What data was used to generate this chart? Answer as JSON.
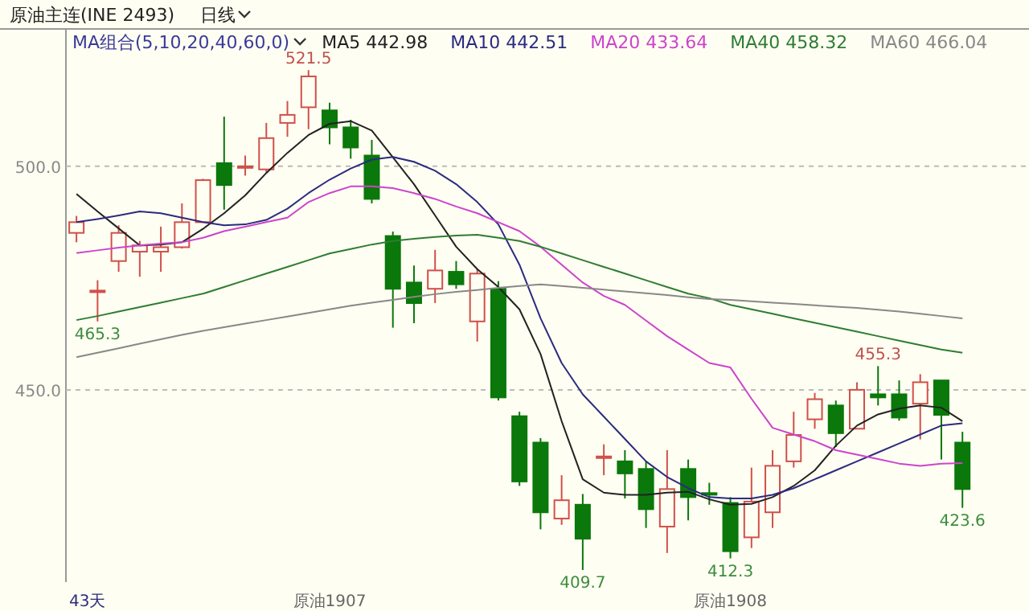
{
  "chart_data": {
    "type": "candlestick",
    "title": "原油主连(INE 2493)",
    "subtitle": "日线",
    "legend_title": "MA组合(5,10,20,40,60,0)",
    "legend": "top",
    "grid": "y",
    "categories": [
      null,
      null,
      null,
      null,
      null,
      null,
      null,
      null,
      null,
      null,
      null,
      null,
      "原油1907",
      null,
      null,
      null,
      null,
      null,
      null,
      null,
      null,
      null,
      null,
      null,
      null,
      null,
      null,
      null,
      null,
      null,
      null,
      "原油1908",
      null,
      null,
      null,
      null,
      null,
      null,
      null,
      null,
      null,
      null,
      null
    ],
    "ylim": [
      407,
      530
    ],
    "yticks": [
      {
        "value": 500,
        "label": "500.0"
      },
      {
        "value": 450,
        "label": "450.0"
      }
    ],
    "ohlc": [
      [
        485.1,
        488.9,
        483.0,
        487.5
      ],
      [
        472.2,
        474.5,
        465.3,
        472.2
      ],
      [
        478.8,
        486.8,
        476.4,
        485.1
      ],
      [
        480.9,
        483.3,
        475.3,
        482.3
      ],
      [
        480.9,
        486.5,
        476.4,
        481.9
      ],
      [
        481.9,
        491.7,
        481.6,
        487.5
      ],
      [
        487.5,
        497.2,
        487.5,
        496.9
      ],
      [
        500.7,
        511.1,
        490.3,
        495.8
      ],
      [
        500.0,
        502.4,
        497.9,
        500.0
      ],
      [
        499.3,
        509.7,
        498.6,
        506.3
      ],
      [
        509.7,
        514.6,
        506.6,
        511.5
      ],
      [
        513.2,
        521.5,
        508.3,
        520.1
      ],
      [
        512.5,
        514.2,
        504.9,
        508.7
      ],
      [
        508.7,
        510.4,
        501.7,
        504.2
      ],
      [
        502.4,
        505.9,
        491.7,
        492.7
      ],
      [
        484.4,
        485.4,
        463.9,
        472.6
      ],
      [
        474.0,
        477.8,
        464.9,
        469.4
      ],
      [
        472.6,
        481.3,
        469.4,
        476.7
      ],
      [
        476.4,
        478.8,
        472.6,
        473.6
      ],
      [
        465.3,
        477.1,
        460.8,
        476.0
      ],
      [
        472.6,
        474.3,
        447.6,
        448.3
      ],
      [
        444.1,
        445.1,
        428.5,
        429.5
      ],
      [
        438.2,
        439.2,
        418.8,
        422.6
      ],
      [
        421.2,
        430.9,
        419.8,
        425.3
      ],
      [
        424.3,
        426.7,
        409.7,
        416.7
      ],
      [
        435.1,
        437.8,
        430.9,
        435.1
      ],
      [
        434.0,
        436.5,
        425.7,
        431.3
      ],
      [
        432.3,
        434.0,
        419.1,
        423.3
      ],
      [
        419.4,
        436.5,
        413.5,
        427.8
      ],
      [
        432.3,
        434.4,
        420.8,
        426.0
      ],
      [
        426.9,
        429.2,
        424.3,
        426.7
      ],
      [
        424.7,
        426.0,
        412.3,
        413.9
      ],
      [
        417.0,
        432.6,
        414.6,
        425.0
      ],
      [
        422.6,
        436.5,
        419.1,
        433.0
      ],
      [
        434.0,
        445.1,
        432.6,
        439.9
      ],
      [
        443.4,
        449.3,
        441.3,
        447.9
      ],
      [
        446.5,
        447.6,
        437.2,
        440.3
      ],
      [
        441.3,
        451.7,
        441.3,
        450.0
      ],
      [
        449.0,
        455.3,
        446.5,
        448.3
      ],
      [
        449.0,
        452.1,
        443.1,
        443.8
      ],
      [
        446.9,
        453.5,
        438.9,
        451.7
      ],
      [
        452.1,
        452.1,
        434.4,
        444.4
      ],
      [
        438.2,
        440.6,
        423.6,
        427.8
      ]
    ],
    "series": [
      {
        "name": "MA5 442.98",
        "type": "line",
        "color": "#222222",
        "values": [
          493.8,
          489.9,
          486.1,
          482.3,
          482.5,
          483.0,
          486.0,
          489.5,
          493.5,
          498.5,
          503.0,
          507.0,
          509.5,
          510.1,
          508.0,
          502.0,
          496.0,
          489.0,
          482.0,
          477.0,
          473.0,
          468.0,
          458.0,
          443.0,
          430.0,
          427.0,
          426.5,
          426.5,
          427.0,
          427.2,
          425.5,
          424.3,
          424.5,
          426.0,
          428.5,
          432.0,
          437.5,
          442.0,
          444.5,
          445.8,
          446.5,
          446.0,
          443.0
        ]
      },
      {
        "name": "MA10 442.51",
        "type": "line",
        "color": "#2b2b80",
        "values": [
          487.5,
          488.2,
          489.0,
          489.9,
          489.5,
          488.5,
          487.5,
          486.8,
          487.0,
          488.0,
          490.5,
          494.0,
          497.0,
          499.5,
          501.5,
          502.1,
          501.0,
          499.0,
          496.0,
          492.0,
          487.0,
          478.0,
          466.0,
          456.0,
          449.0,
          444.0,
          439.0,
          434.0,
          430.5,
          428.0,
          426.0,
          425.7,
          425.7,
          426.5,
          428.0,
          430.0,
          432.0,
          434.0,
          436.0,
          438.0,
          440.0,
          442.0,
          442.5
        ]
      },
      {
        "name": "MA20 433.64",
        "type": "line",
        "color": "#cc44cc",
        "values": [
          480.6,
          481.2,
          481.8,
          482.3,
          482.7,
          483.0,
          484.0,
          485.5,
          486.5,
          487.5,
          488.5,
          492.0,
          494.0,
          495.5,
          495.5,
          495.1,
          494.0,
          492.7,
          491.0,
          489.5,
          487.5,
          485.5,
          482.0,
          478.0,
          474.0,
          471.0,
          469.0,
          465.5,
          462.0,
          459.0,
          456.0,
          455.0,
          448.0,
          441.5,
          440.0,
          438.5,
          436.5,
          435.5,
          434.5,
          433.5,
          433.0,
          433.5,
          433.6
        ]
      },
      {
        "name": "MA40 458.32",
        "type": "line",
        "color": "#2e7d32",
        "values": [
          465.6,
          466.5,
          467.5,
          468.5,
          469.5,
          470.5,
          471.5,
          473.0,
          474.5,
          476.0,
          477.5,
          479.0,
          480.5,
          481.5,
          482.5,
          483.3,
          483.8,
          484.2,
          484.5,
          484.7,
          484.0,
          483.3,
          482.0,
          480.5,
          479.0,
          477.5,
          476.0,
          474.5,
          473.0,
          471.5,
          470.5,
          469.0,
          468.0,
          467.0,
          466.0,
          465.0,
          464.0,
          463.0,
          462.0,
          461.0,
          460.0,
          459.0,
          458.3
        ]
      },
      {
        "name": "MA60 466.04",
        "type": "line",
        "color": "#888888",
        "values": [
          457.3,
          458.3,
          459.3,
          460.3,
          461.3,
          462.3,
          463.2,
          464.0,
          464.8,
          465.6,
          466.4,
          467.2,
          468.0,
          468.8,
          469.5,
          470.1,
          470.8,
          471.4,
          471.9,
          472.3,
          472.8,
          473.2,
          473.6,
          473.2,
          472.8,
          472.4,
          472.0,
          471.6,
          471.2,
          470.7,
          470.3,
          470.1,
          469.8,
          469.5,
          469.2,
          468.9,
          468.6,
          468.3,
          467.9,
          467.5,
          467.0,
          466.5,
          466.0
        ]
      }
    ],
    "annotations": [
      {
        "text": "521.5",
        "y": 521.5
      },
      {
        "text": "465.3",
        "y": 465.3
      },
      {
        "text": "409.7",
        "y": 409.7
      },
      {
        "text": "412.3",
        "y": 412.3
      },
      {
        "text": "455.3",
        "y": 455.3
      },
      {
        "text": "423.6",
        "y": 423.6
      },
      "43天"
    ]
  }
}
